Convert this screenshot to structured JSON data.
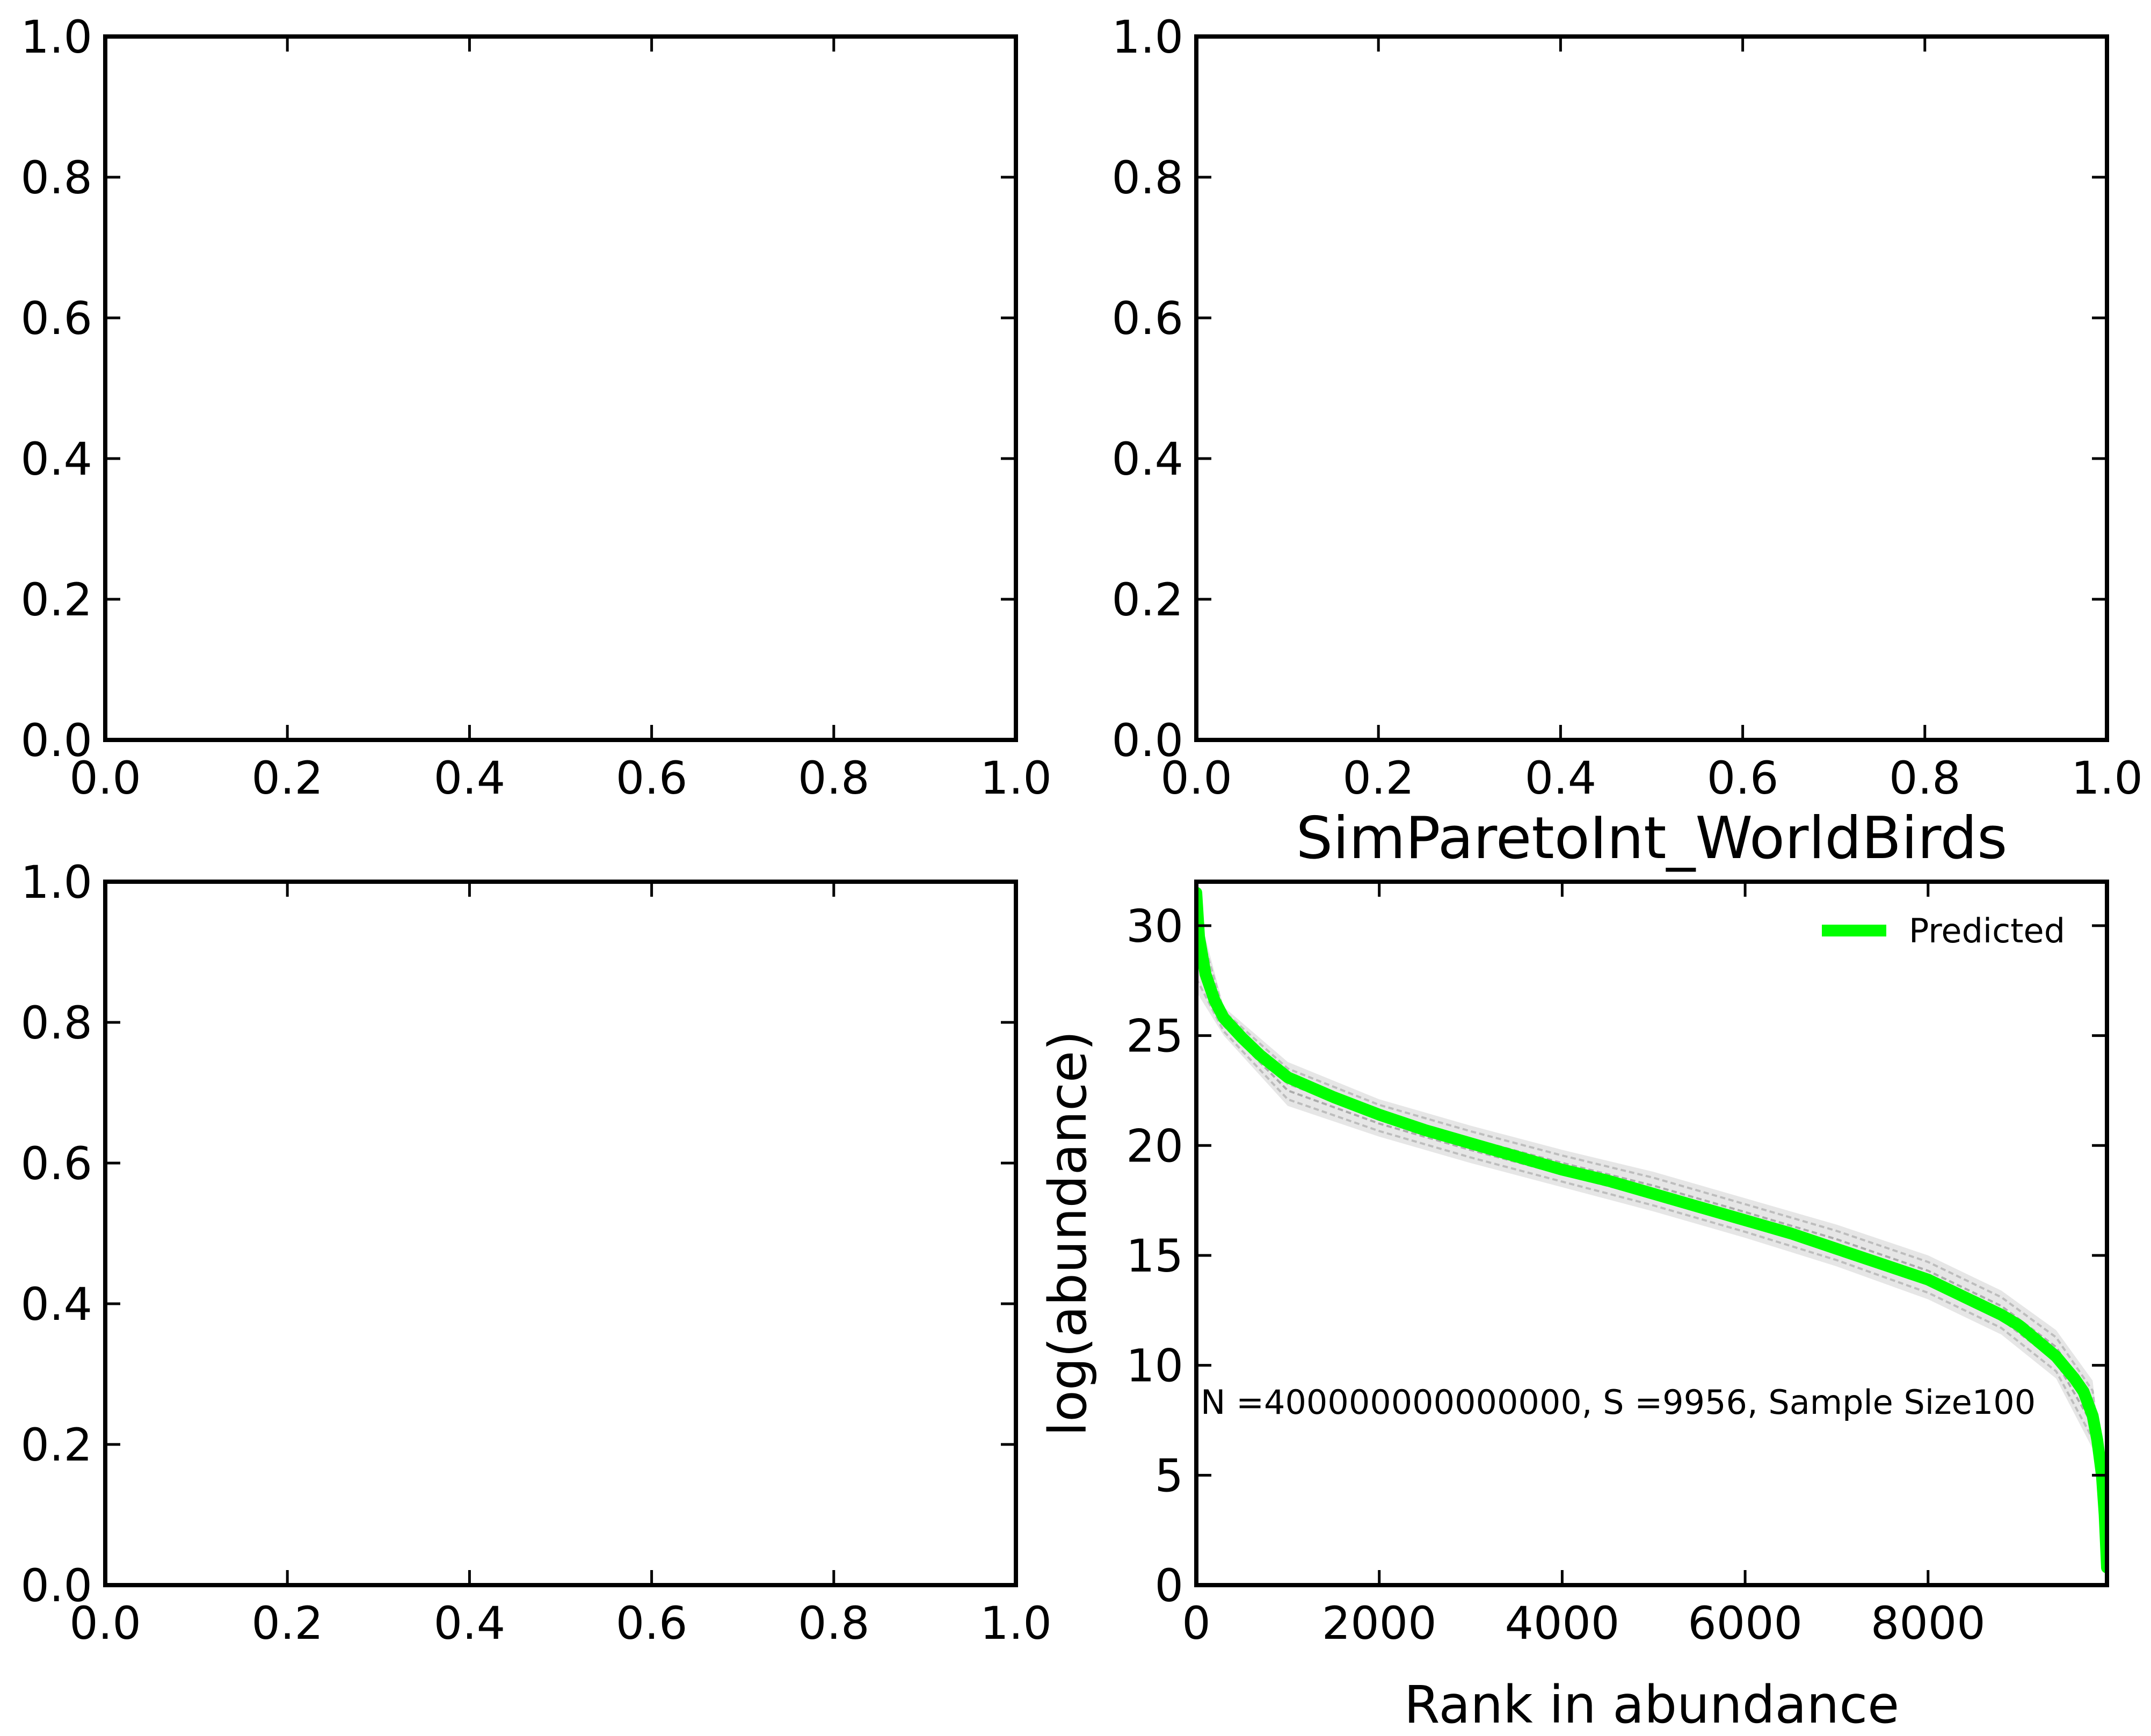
{
  "chart_data": [
    {
      "type": "line",
      "title": "",
      "xlabel": "",
      "ylabel": "",
      "xlim": [
        0.0,
        1.0
      ],
      "ylim": [
        0.0,
        1.0
      ],
      "xticks": [
        "0.0",
        "0.2",
        "0.4",
        "0.6",
        "0.8",
        "1.0"
      ],
      "yticks": [
        "0.0",
        "0.2",
        "0.4",
        "0.6",
        "0.8",
        "1.0"
      ],
      "series": []
    },
    {
      "type": "line",
      "title": "",
      "xlabel": "",
      "ylabel": "",
      "xlim": [
        0.0,
        1.0
      ],
      "ylim": [
        0.0,
        1.0
      ],
      "xticks": [
        "0.0",
        "0.2",
        "0.4",
        "0.6",
        "0.8",
        "1.0"
      ],
      "yticks": [
        "0.0",
        "0.2",
        "0.4",
        "0.6",
        "0.8",
        "1.0"
      ],
      "series": []
    },
    {
      "type": "line",
      "title": "",
      "xlabel": "",
      "ylabel": "",
      "xlim": [
        0.0,
        1.0
      ],
      "ylim": [
        0.0,
        1.0
      ],
      "xticks": [
        "0.0",
        "0.2",
        "0.4",
        "0.6",
        "0.8",
        "1.0"
      ],
      "yticks": [
        "0.0",
        "0.2",
        "0.4",
        "0.6",
        "0.8",
        "1.0"
      ],
      "series": []
    },
    {
      "type": "line",
      "title": "SimParetoInt_WorldBirds",
      "xlabel": "Rank in abundance",
      "ylabel": "log(abundance)",
      "xlim": [
        0,
        9956
      ],
      "ylim": [
        0,
        32
      ],
      "xticks": [
        "0",
        "2000",
        "4000",
        "6000",
        "8000"
      ],
      "yticks": [
        "0",
        "5",
        "10",
        "15",
        "20",
        "25",
        "30"
      ],
      "grid": false,
      "legend_position": "top-right",
      "annotation": "N =400000000000000, S =9956, Sample Size100",
      "series": [
        {
          "name": "Predicted",
          "color": "#00ff00",
          "x": [
            0,
            30,
            100,
            200,
            300,
            500,
            700,
            1000,
            1500,
            2000,
            2500,
            3000,
            3500,
            4000,
            4500,
            5000,
            5500,
            6000,
            6500,
            7000,
            7500,
            8000,
            8500,
            8800,
            9000,
            9200,
            9400,
            9600,
            9700,
            9800,
            9850,
            9900,
            9930,
            9956
          ],
          "y": [
            31.5,
            29.5,
            27.8,
            26.6,
            25.8,
            24.9,
            24.1,
            23.1,
            22.2,
            21.4,
            20.7,
            20.1,
            19.5,
            18.9,
            18.4,
            17.8,
            17.2,
            16.6,
            16.0,
            15.3,
            14.6,
            13.9,
            12.9,
            12.3,
            11.8,
            11.1,
            10.4,
            9.4,
            8.8,
            7.7,
            6.6,
            5.0,
            3.2,
            0.8
          ]
        },
        {
          "name": "",
          "role": "simulated samples (grey band)",
          "color": "#808080",
          "x": [
            0,
            300,
            1000,
            2000,
            3000,
            4000,
            5000,
            6000,
            7000,
            8000,
            8800,
            9400,
            9800,
            9956
          ],
          "y_upper": [
            31.0,
            26.3,
            23.8,
            22.1,
            20.9,
            19.8,
            18.8,
            17.6,
            16.4,
            15.0,
            13.4,
            11.6,
            9.3,
            3.5
          ],
          "y_lower": [
            27.0,
            25.0,
            21.8,
            20.4,
            19.2,
            18.1,
            17.0,
            15.8,
            14.5,
            13.0,
            11.4,
            9.4,
            6.2,
            0.8
          ]
        }
      ]
    }
  ]
}
